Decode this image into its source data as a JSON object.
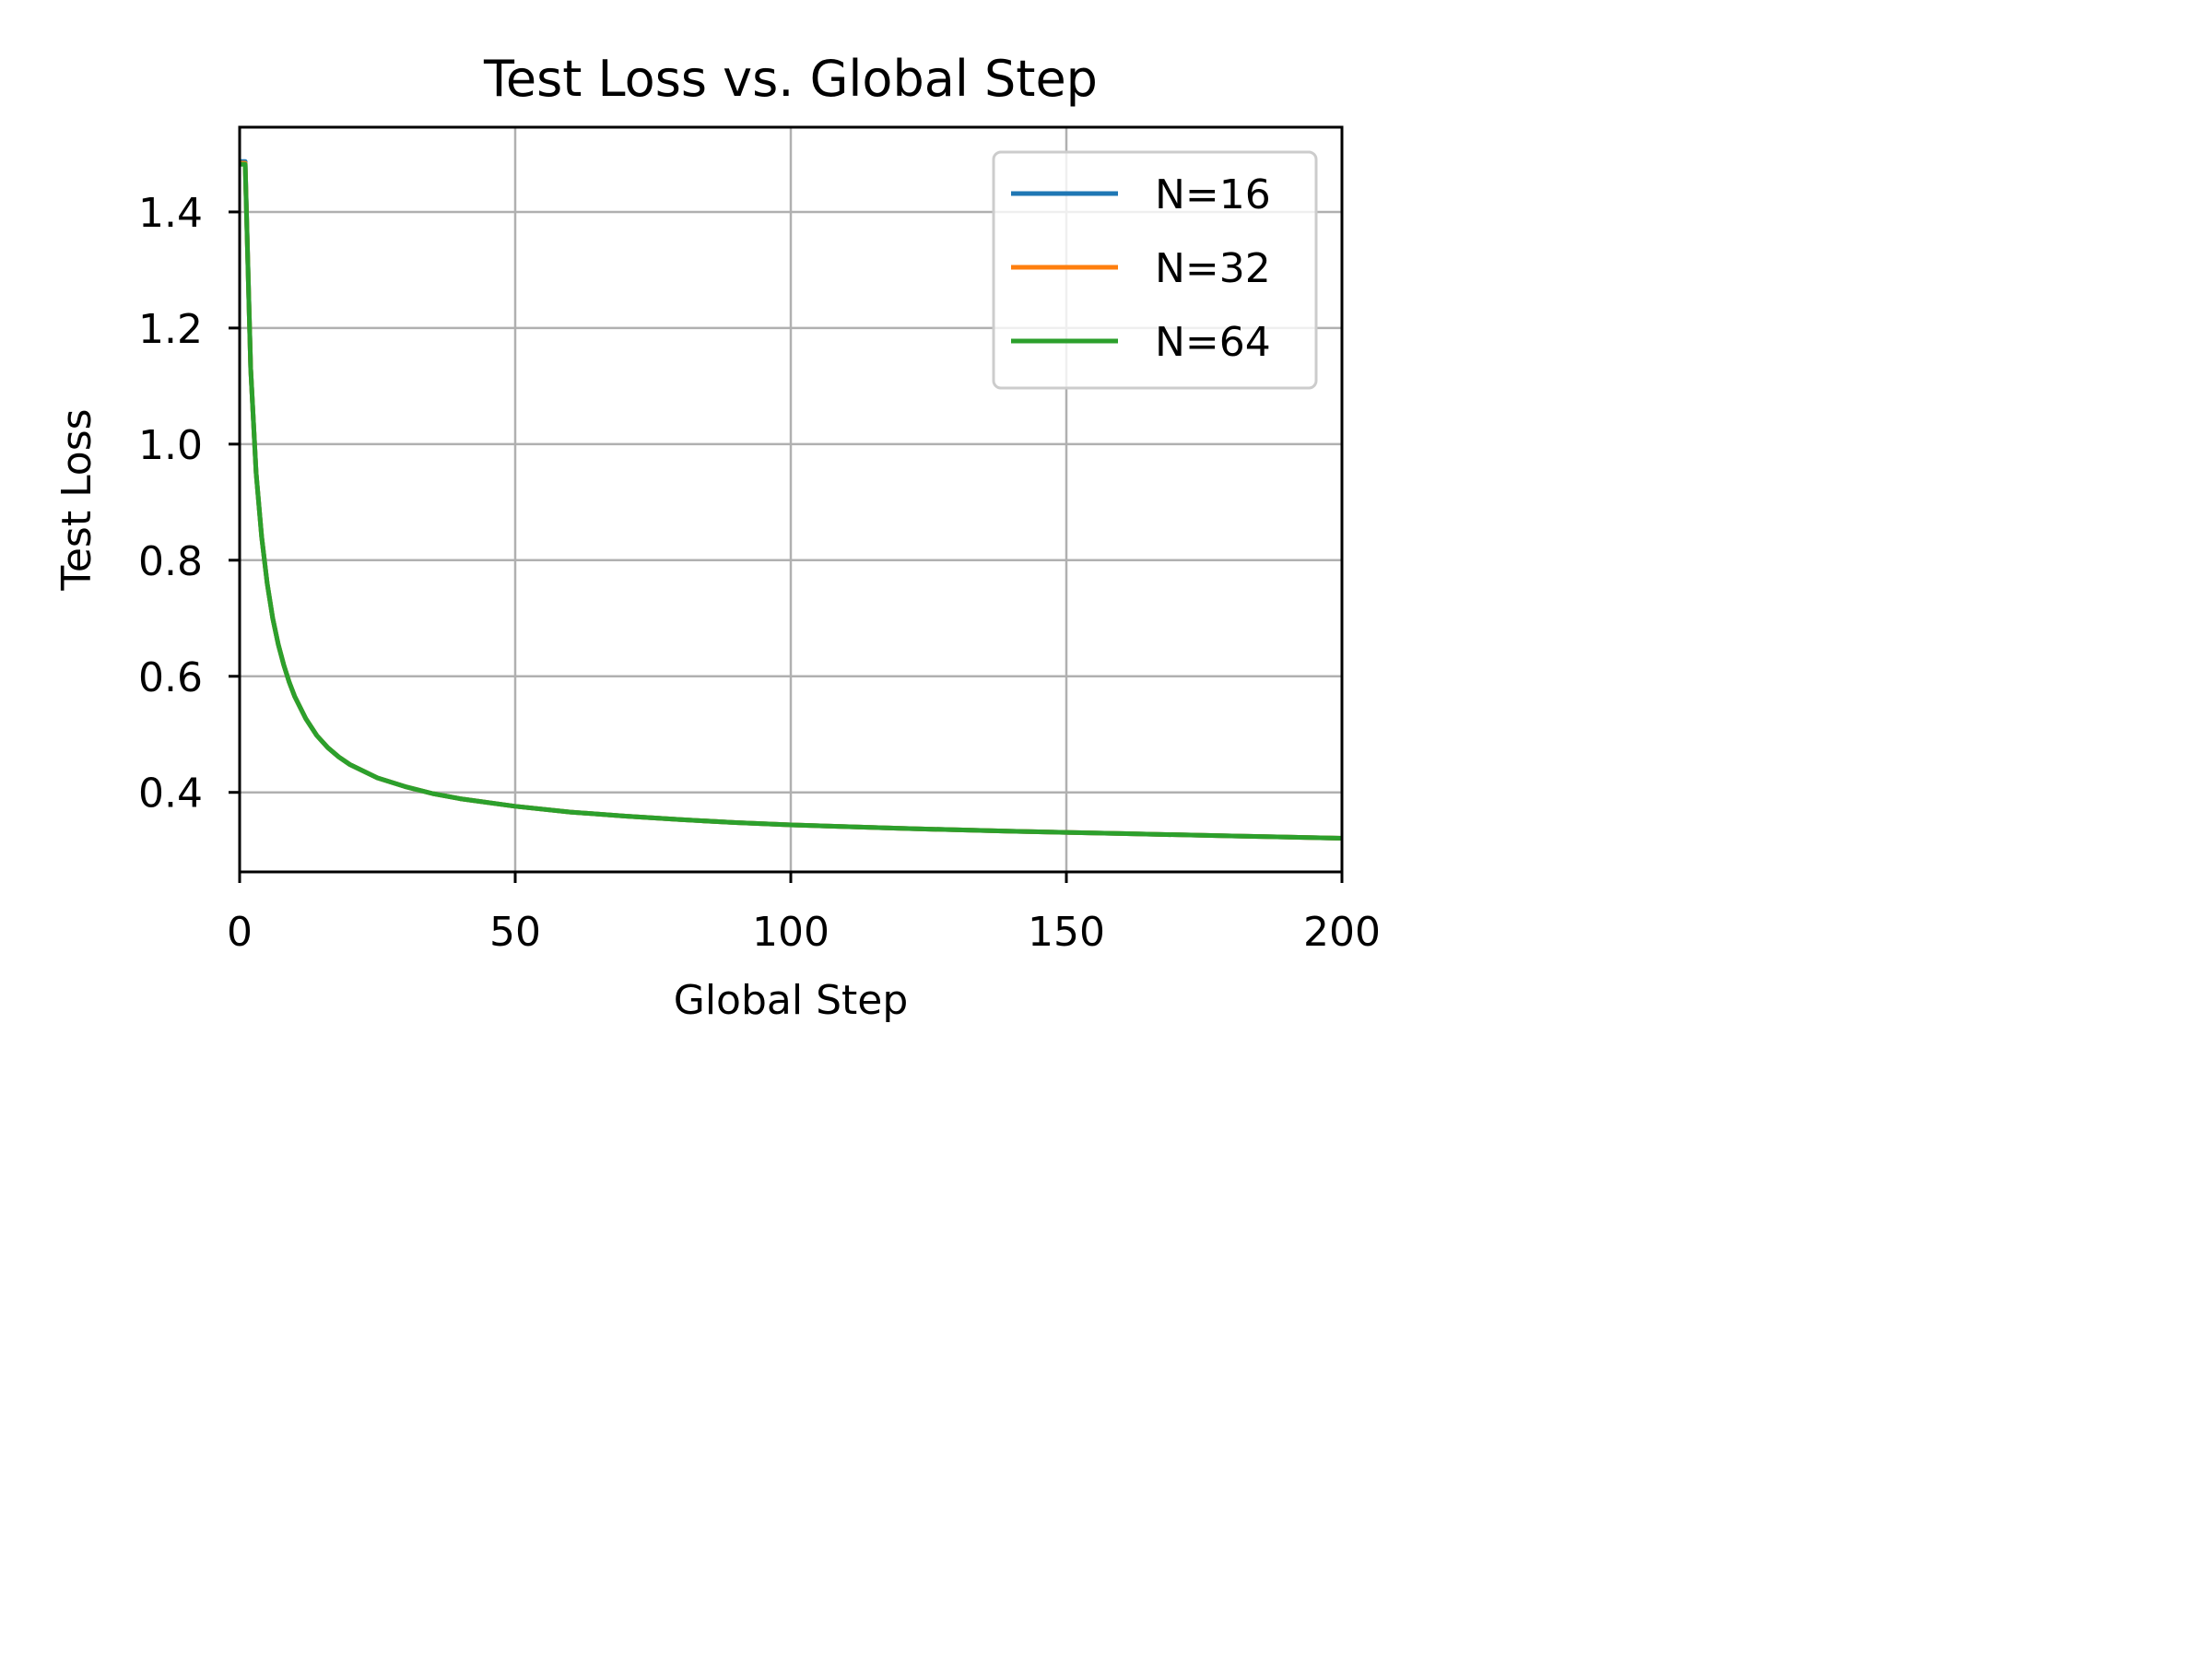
{
  "chart_data": {
    "type": "line",
    "title": "Test Loss vs. Global Step",
    "xlabel": "Global Step",
    "ylabel": "Test Loss",
    "xlim": [
      0,
      200
    ],
    "ylim": [
      0.263,
      1.546
    ],
    "xticks": [
      0,
      50,
      100,
      150,
      200
    ],
    "yticks": [
      0.4,
      0.6,
      0.8,
      1.0,
      1.2,
      1.4
    ],
    "xtick_labels": [
      "0",
      "50",
      "100",
      "150",
      "200"
    ],
    "ytick_labels": [
      "0.4",
      "0.6",
      "0.8",
      "1.0",
      "1.2",
      "1.4"
    ],
    "grid": true,
    "legend_position": "top-right",
    "x": [
      0,
      1,
      2,
      3,
      4,
      5,
      6,
      7,
      8,
      9,
      10,
      12,
      14,
      16,
      18,
      20,
      25,
      30,
      35,
      40,
      50,
      60,
      70,
      80,
      90,
      100,
      120,
      140,
      160,
      180,
      200
    ],
    "series": [
      {
        "name": "N=16",
        "color": "#1f77b4",
        "values": [
          1.487,
          1.487,
          1.13,
          0.95,
          0.84,
          0.76,
          0.7,
          0.655,
          0.62,
          0.59,
          0.565,
          0.527,
          0.498,
          0.477,
          0.461,
          0.448,
          0.425,
          0.41,
          0.398,
          0.389,
          0.376,
          0.366,
          0.359,
          0.353,
          0.348,
          0.344,
          0.338,
          0.333,
          0.329,
          0.325,
          0.321
        ]
      },
      {
        "name": "N=32",
        "color": "#ff7f0e",
        "values": [
          1.484,
          1.484,
          1.13,
          0.95,
          0.84,
          0.76,
          0.7,
          0.655,
          0.62,
          0.59,
          0.565,
          0.527,
          0.498,
          0.477,
          0.461,
          0.448,
          0.425,
          0.41,
          0.398,
          0.389,
          0.376,
          0.366,
          0.359,
          0.353,
          0.348,
          0.344,
          0.338,
          0.333,
          0.329,
          0.325,
          0.321
        ]
      },
      {
        "name": "N=64",
        "color": "#2ca02c",
        "values": [
          1.482,
          1.482,
          1.13,
          0.95,
          0.84,
          0.76,
          0.7,
          0.655,
          0.62,
          0.59,
          0.565,
          0.527,
          0.498,
          0.477,
          0.461,
          0.448,
          0.425,
          0.41,
          0.398,
          0.389,
          0.376,
          0.366,
          0.359,
          0.353,
          0.348,
          0.344,
          0.338,
          0.333,
          0.329,
          0.325,
          0.321
        ]
      }
    ]
  }
}
